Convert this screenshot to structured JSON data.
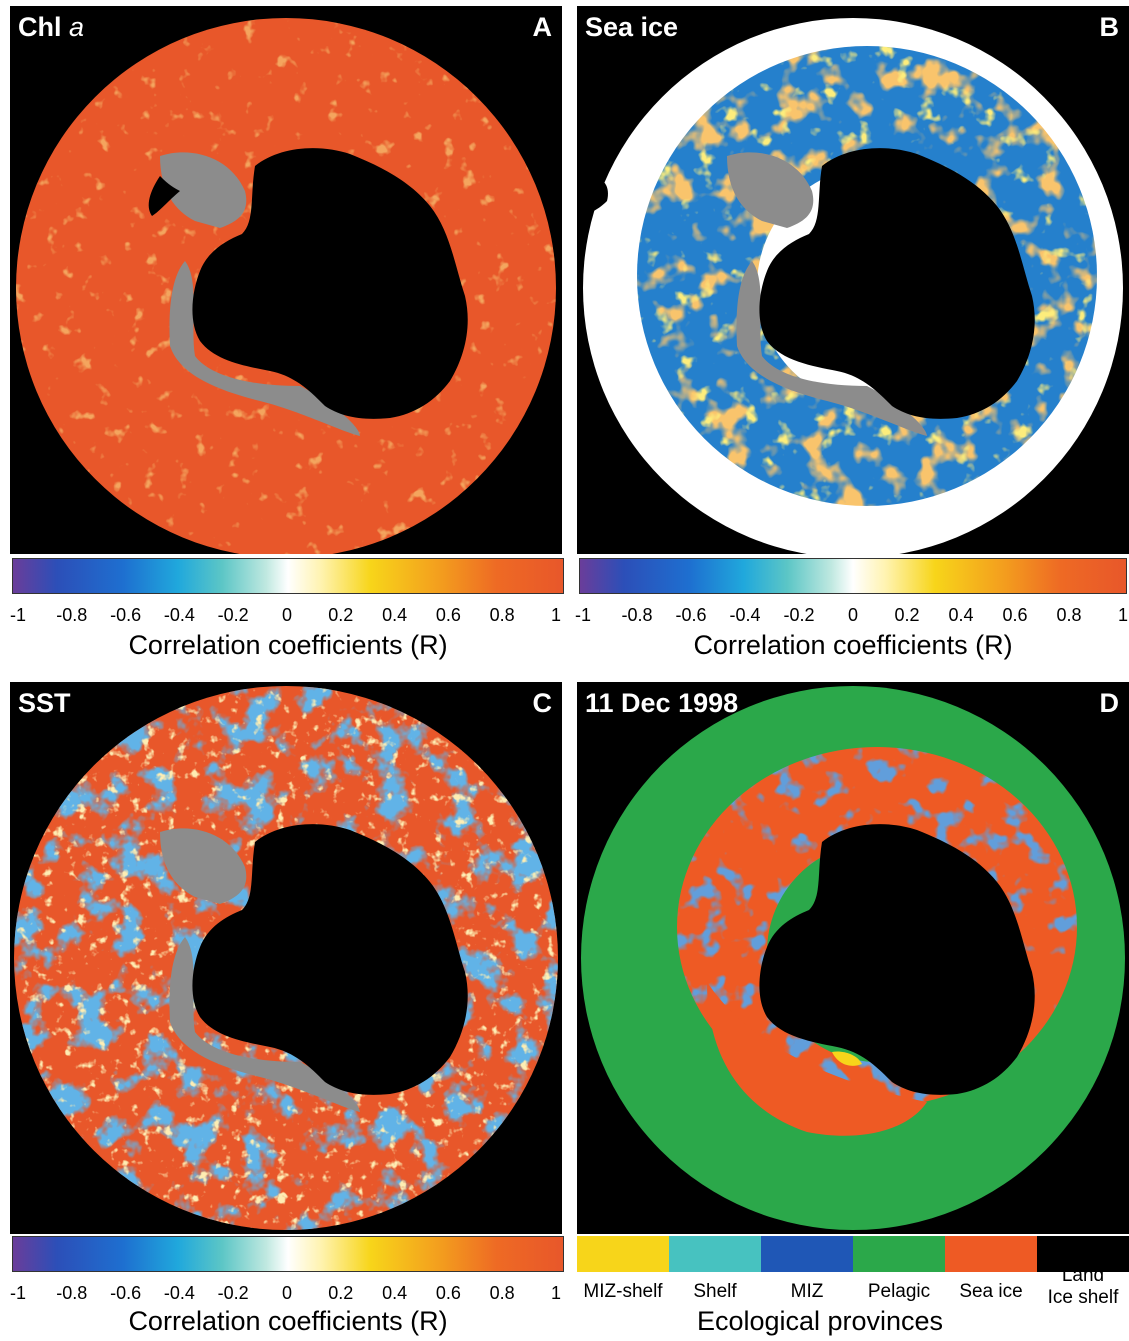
{
  "panels": [
    {
      "id": "A",
      "title": "Chl",
      "title_ital": "a",
      "letter": "A"
    },
    {
      "id": "B",
      "title": "Sea ice",
      "title_ital": "",
      "letter": "B"
    },
    {
      "id": "C",
      "title": "SST",
      "title_ital": "",
      "letter": "C"
    },
    {
      "id": "D",
      "title": "11 Dec 1998",
      "title_ital": "",
      "letter": "D"
    }
  ],
  "colorbar": {
    "ticks": [
      "-1",
      "-0.8",
      "-0.6",
      "-0.4",
      "-0.2",
      "0",
      "0.2",
      "0.4",
      "0.6",
      "0.8",
      "1"
    ],
    "label": "Correlation coefficients (R)"
  },
  "legend": {
    "title": "Ecological provinces",
    "categories": [
      {
        "name": "MIZ-shelf",
        "color": "#f7d51a"
      },
      {
        "name": "Shelf",
        "color": "#47c2c0"
      },
      {
        "name": "MIZ",
        "color": "#1f57b6"
      },
      {
        "name": "Pelagic",
        "color": "#2ba84a"
      },
      {
        "name": "Sea ice",
        "color": "#ee5a24"
      },
      {
        "name": "Land\nIce shelf",
        "color": "#000000"
      }
    ]
  },
  "colors": {
    "ocean_orange": "#e8572a",
    "ice_shelf_gray": "#8c8c8c",
    "land": "#000000",
    "sea_ice_white": "#ffffff",
    "mid_blue": "#1b6fc7",
    "pelagic_green": "#2ba84a"
  }
}
